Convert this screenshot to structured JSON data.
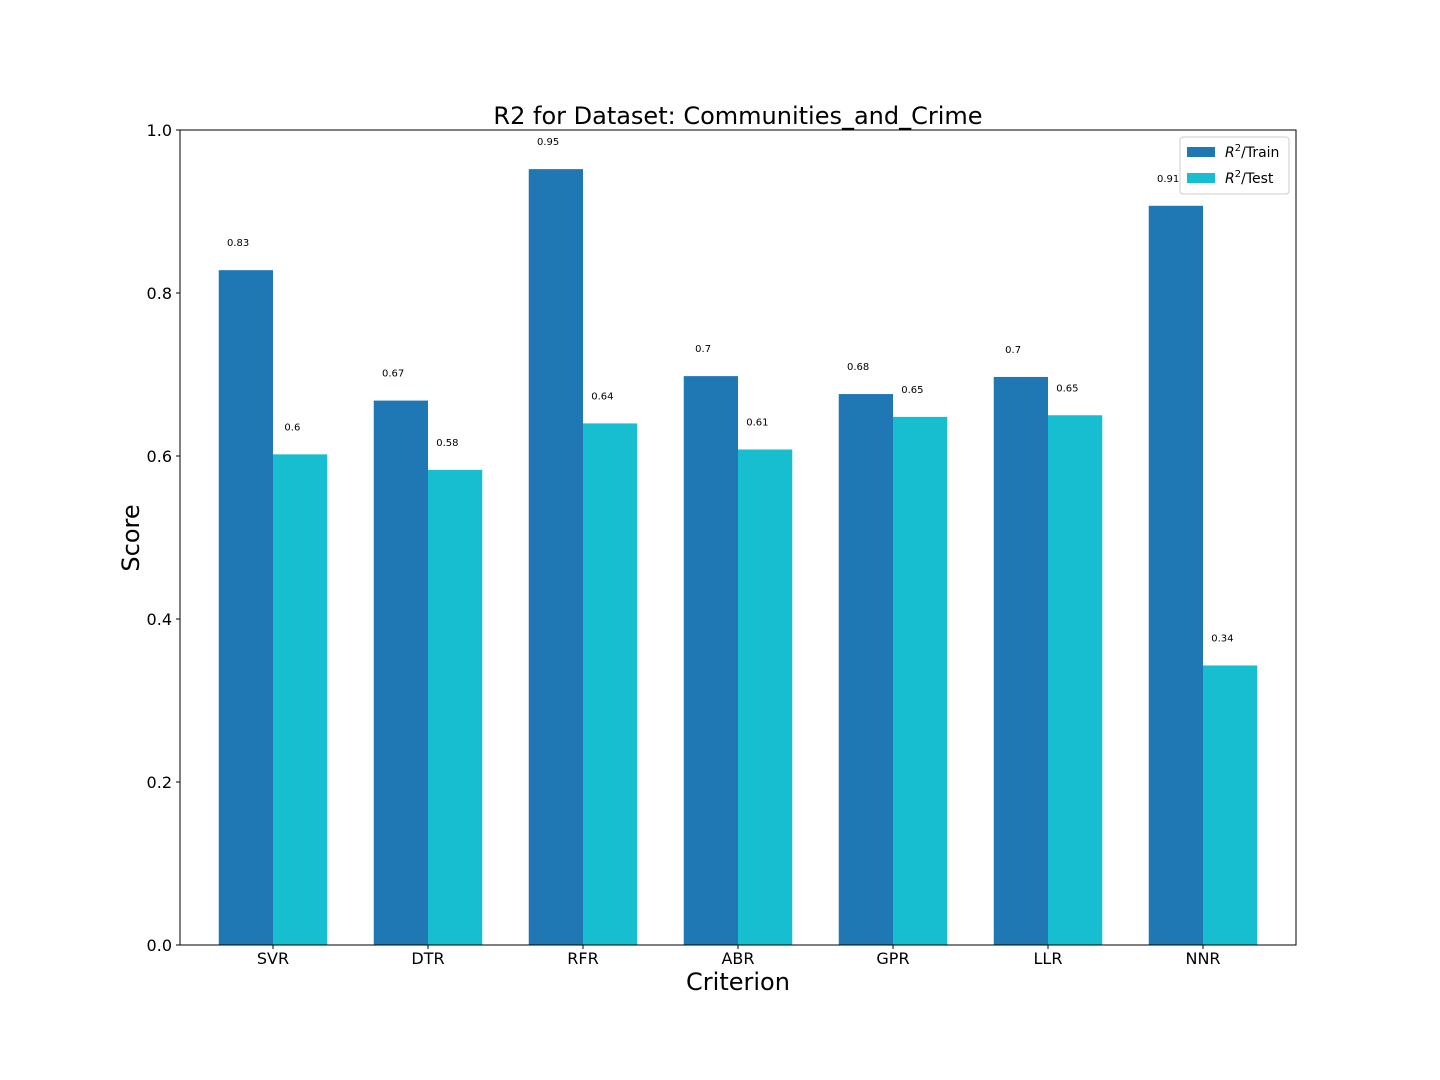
{
  "chart_data": {
    "type": "bar",
    "title": "R2 for Dataset: Communities_and_Crime",
    "xlabel": "Criterion",
    "ylabel": "Score",
    "ylim": [
      0,
      1.0
    ],
    "yticks": [
      "0.0",
      "0.2",
      "0.4",
      "0.6",
      "0.8",
      "1.0"
    ],
    "categories": [
      "SVR",
      "DTR",
      "RFR",
      "ABR",
      "GPR",
      "LLR",
      "NNR"
    ],
    "series": [
      {
        "name": "/Train",
        "name_math_base": "R",
        "name_math_sup": "2",
        "color": "#1f77b4",
        "values": [
          0.828,
          0.668,
          0.952,
          0.698,
          0.676,
          0.697,
          0.907
        ],
        "labels": [
          "0.83",
          "0.67",
          "0.95",
          "0.7",
          "0.68",
          "0.7",
          "0.91"
        ]
      },
      {
        "name": "/Test",
        "name_math_base": "R",
        "name_math_sup": "2",
        "color": "#17becf",
        "values": [
          0.602,
          0.583,
          0.64,
          0.608,
          0.648,
          0.65,
          0.343
        ],
        "labels": [
          "0.6",
          "0.58",
          "0.64",
          "0.61",
          "0.65",
          "0.65",
          "0.34"
        ]
      }
    ],
    "legend_position": "top-right",
    "grid": false
  }
}
